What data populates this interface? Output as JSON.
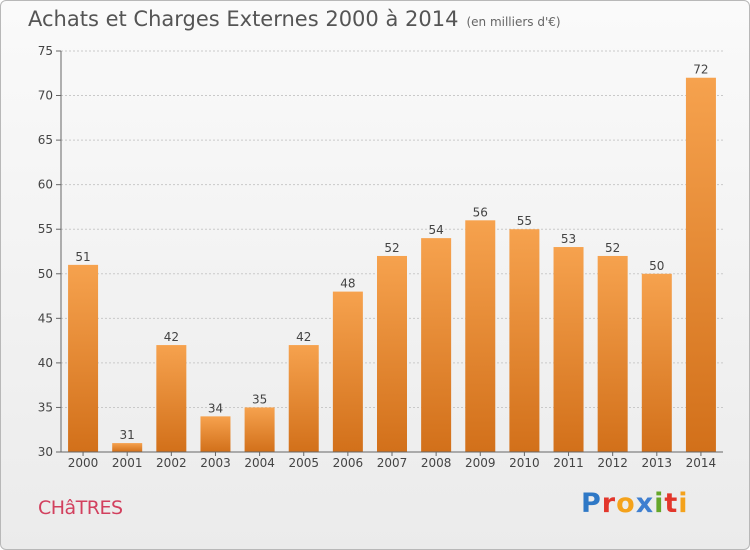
{
  "header": {
    "title": "Achats et Charges Externes 2000 à 2014",
    "unit": "(en milliers d'€)"
  },
  "footer": {
    "city": "CHâTRES",
    "brand": "Proxiti"
  },
  "colors": {
    "bar_light": "#f6a24e",
    "bar_dark": "#d2701a",
    "brand_city": "#d2405e"
  },
  "chart_data": {
    "type": "bar",
    "categories": [
      "2000",
      "2001",
      "2002",
      "2003",
      "2004",
      "2005",
      "2006",
      "2007",
      "2008",
      "2009",
      "2010",
      "2011",
      "2012",
      "2013",
      "2014"
    ],
    "values": [
      51,
      31,
      42,
      34,
      35,
      42,
      48,
      52,
      54,
      56,
      55,
      53,
      52,
      50,
      72
    ],
    "data_labels": [
      "51",
      "31",
      "42",
      "34",
      "35",
      "42",
      "48",
      "52",
      "54",
      "56",
      "55",
      "53",
      "52",
      "50",
      "72"
    ],
    "ylim": [
      30,
      75
    ],
    "yticks": [
      30,
      35,
      40,
      45,
      50,
      55,
      60,
      65,
      70,
      75
    ],
    "grid": true,
    "xlabel": "",
    "ylabel": ""
  }
}
